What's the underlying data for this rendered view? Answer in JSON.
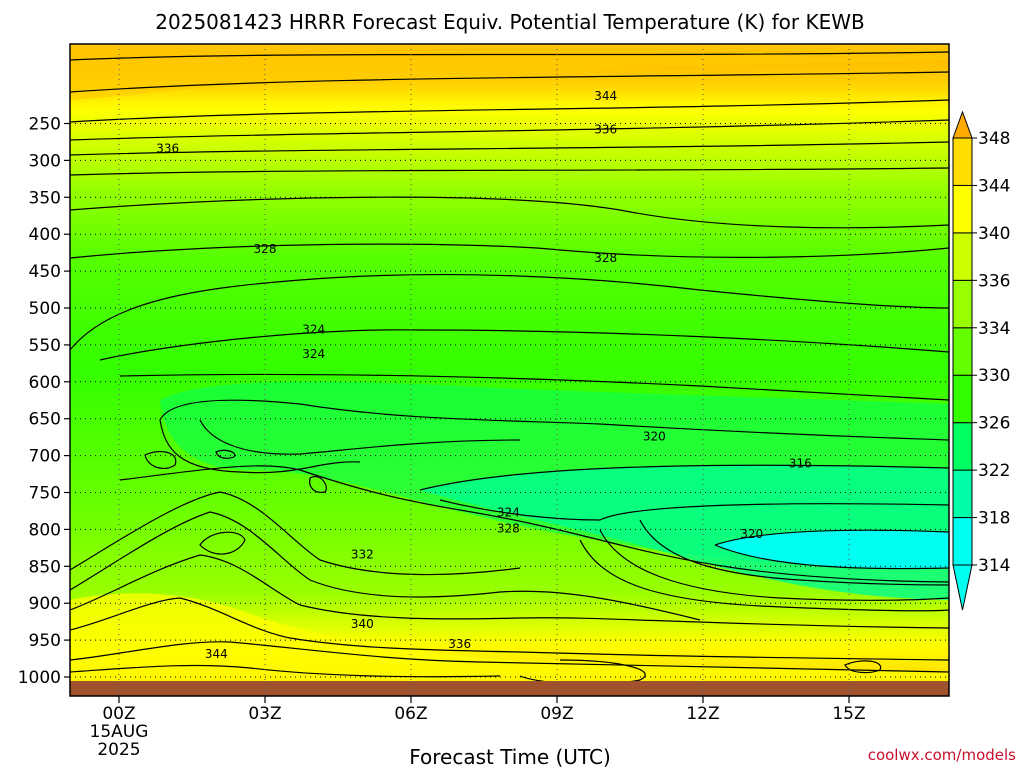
{
  "chart_data": {
    "type": "heatmap",
    "title": "2025081423 HRRR Forecast Equiv. Potential Temperature (K) for KEWB",
    "xlabel": "Forecast Time (UTC)",
    "ylabel": "",
    "x_ticks": [
      "00Z",
      "03Z",
      "06Z",
      "09Z",
      "12Z",
      "15Z"
    ],
    "x_tick_hours": [
      0,
      3,
      6,
      9,
      12,
      15
    ],
    "x_date_line1": "15AUG",
    "x_date_line2": "2025",
    "xlim_hours": [
      -1,
      17
    ],
    "y_ticks": [
      250,
      300,
      350,
      400,
      450,
      500,
      550,
      600,
      650,
      700,
      750,
      800,
      850,
      900,
      950,
      1000
    ],
    "ylim_hPa": [
      200,
      1030
    ],
    "colorbar_levels": [
      314,
      318,
      322,
      326,
      330,
      334,
      336,
      340,
      344,
      348
    ],
    "colorbar_colors": [
      "#00fff0",
      "#00ffa8",
      "#00ff60",
      "#33ff00",
      "#66ff00",
      "#99ff00",
      "#ccff00",
      "#ffff00",
      "#ffdd00",
      "#ffaa00"
    ],
    "contour_labels": [
      {
        "value": 344,
        "x_hours": 10,
        "p": 213
      },
      {
        "value": 336,
        "x_hours": 10,
        "p": 258
      },
      {
        "value": 336,
        "x_hours": 1,
        "p": 284
      },
      {
        "value": 328,
        "x_hours": 3,
        "p": 420
      },
      {
        "value": 328,
        "x_hours": 10,
        "p": 432
      },
      {
        "value": 324,
        "x_hours": 4,
        "p": 529
      },
      {
        "value": 324,
        "x_hours": 4,
        "p": 562
      },
      {
        "value": 320,
        "x_hours": 11,
        "p": 674
      },
      {
        "value": 316,
        "x_hours": 14,
        "p": 711
      },
      {
        "value": 324,
        "x_hours": 8,
        "p": 777
      },
      {
        "value": 328,
        "x_hours": 8,
        "p": 799
      },
      {
        "value": 320,
        "x_hours": 13,
        "p": 806
      },
      {
        "value": 332,
        "x_hours": 5,
        "p": 834
      },
      {
        "value": 340,
        "x_hours": 5,
        "p": 928
      },
      {
        "value": 336,
        "x_hours": 7,
        "p": 955
      },
      {
        "value": 344,
        "x_hours": 2,
        "p": 969
      }
    ],
    "grid": "dotted",
    "legend": "right",
    "terrain_color": "#a0522d"
  },
  "credit": "coolwx.com/models"
}
